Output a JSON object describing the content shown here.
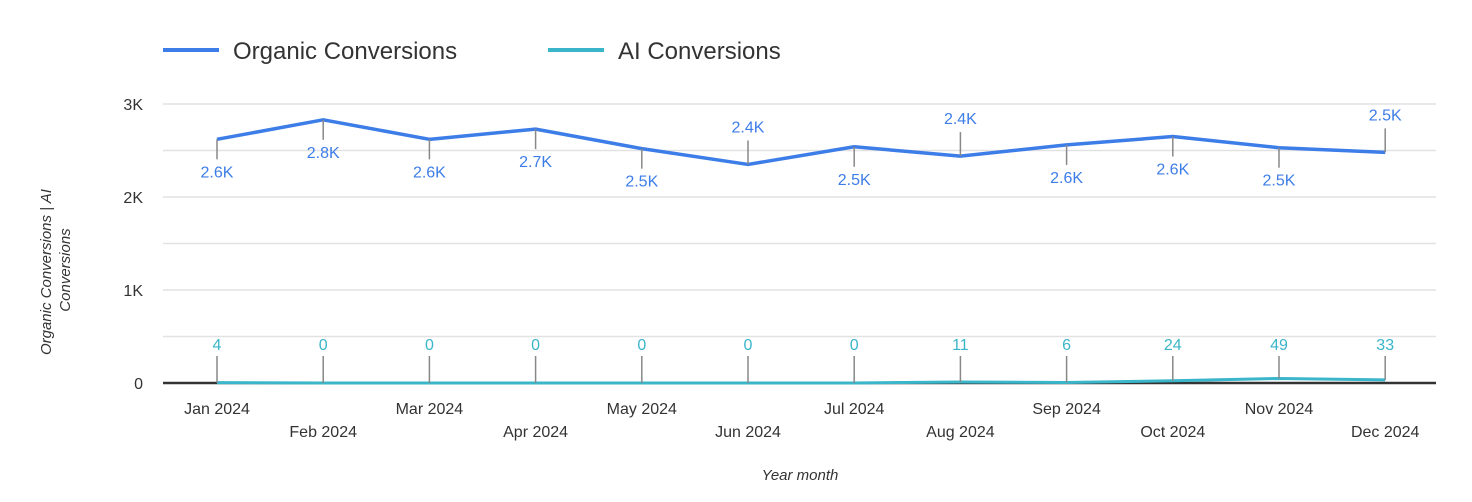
{
  "chart_data": {
    "type": "line",
    "title": "",
    "xlabel": "Year month",
    "ylabel": "Organic Conversions | AI Conversions",
    "ylim": [
      0,
      3000
    ],
    "yticks": [
      "0",
      "1K",
      "2K",
      "3K"
    ],
    "grid": true,
    "legend_position": "top-left",
    "categories": [
      "Jan 2024",
      "Feb 2024",
      "Mar 2024",
      "Apr 2024",
      "May 2024",
      "Jun 2024",
      "Jul 2024",
      "Aug 2024",
      "Sep 2024",
      "Oct 2024",
      "Nov 2024",
      "Dec 2024"
    ],
    "series": [
      {
        "name": "Organic Conversions",
        "color": "#3d7de8",
        "values": [
          2620,
          2830,
          2620,
          2730,
          2520,
          2350,
          2540,
          2440,
          2560,
          2650,
          2530,
          2480
        ],
        "labels": [
          "2.6K",
          "2.8K",
          "2.6K",
          "2.7K",
          "2.5K",
          "2.4K",
          "2.5K",
          "2.4K",
          "2.6K",
          "2.6K",
          "2.5K",
          "2.5K"
        ]
      },
      {
        "name": "AI Conversions",
        "color": "#3ab5c9",
        "values": [
          4,
          0,
          0,
          0,
          0,
          0,
          0,
          11,
          6,
          24,
          49,
          33
        ],
        "labels": [
          "4",
          "0",
          "0",
          "0",
          "0",
          "0",
          "0",
          "11",
          "6",
          "24",
          "49",
          "33"
        ]
      }
    ]
  }
}
